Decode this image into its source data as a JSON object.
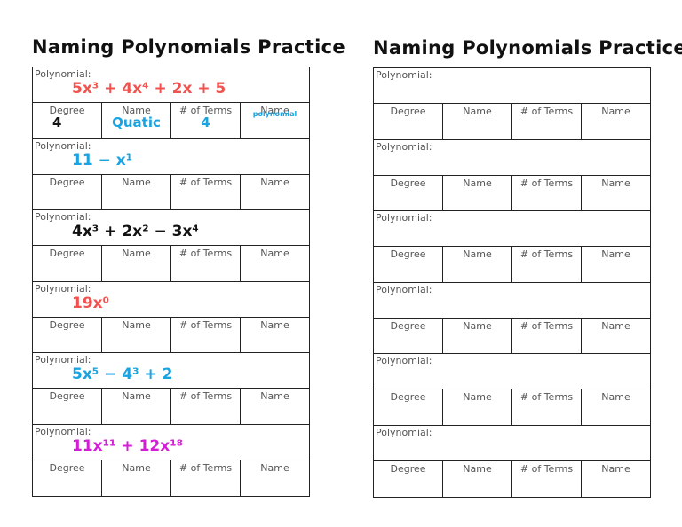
{
  "worksheets": [
    {
      "title": "Naming Polynomials Practice",
      "problems": [
        {
          "label": "Polynomial:",
          "expression": "5x³ + 4x⁴ + 2x + 5",
          "color": "#f0524f",
          "headers": [
            "Degree",
            "Name",
            "# of Terms",
            "Name"
          ],
          "answers": [
            "4",
            "Quatic",
            "4",
            "polynomial"
          ]
        },
        {
          "label": "Polynomial:",
          "expression": "11 − x¹",
          "color": "#1aa3e0",
          "headers": [
            "Degree",
            "Name",
            "# of Terms",
            "Name"
          ]
        },
        {
          "label": "Polynomial:",
          "expression": "4x³ + 2x² − 3x⁴",
          "color": "#111111",
          "headers": [
            "Degree",
            "Name",
            "# of Terms",
            "Name"
          ]
        },
        {
          "label": "Polynomial:",
          "expression": "19x⁰",
          "color": "#f0524f",
          "headers": [
            "Degree",
            "Name",
            "# of Terms",
            "Name"
          ]
        },
        {
          "label": "Polynomial:",
          "expression": "5x⁵ − 4³ + 2",
          "color": "#1aa3e0",
          "headers": [
            "Degree",
            "Name",
            "# of Terms",
            "Name"
          ]
        },
        {
          "label": "Polynomial:",
          "expression": "11x¹¹ + 12x¹⁸",
          "color": "#d21fd6",
          "headers": [
            "Degree",
            "Name",
            "# of Terms",
            "Name"
          ]
        }
      ]
    },
    {
      "title": "Naming Polynomials Practice",
      "problems": [
        {
          "label": "Polynomial:",
          "headers": [
            "Degree",
            "Name",
            "# of Terms",
            "Name"
          ]
        },
        {
          "label": "Polynomial:",
          "headers": [
            "Degree",
            "Name",
            "# of Terms",
            "Name"
          ]
        },
        {
          "label": "Polynomial:",
          "headers": [
            "Degree",
            "Name",
            "# of Terms",
            "Name"
          ]
        },
        {
          "label": "Polynomial:",
          "headers": [
            "Degree",
            "Name",
            "# of Terms",
            "Name"
          ]
        },
        {
          "label": "Polynomial:",
          "headers": [
            "Degree",
            "Name",
            "# of Terms",
            "Name"
          ]
        },
        {
          "label": "Polynomial:",
          "headers": [
            "Degree",
            "Name",
            "# of Terms",
            "Name"
          ]
        }
      ]
    }
  ]
}
